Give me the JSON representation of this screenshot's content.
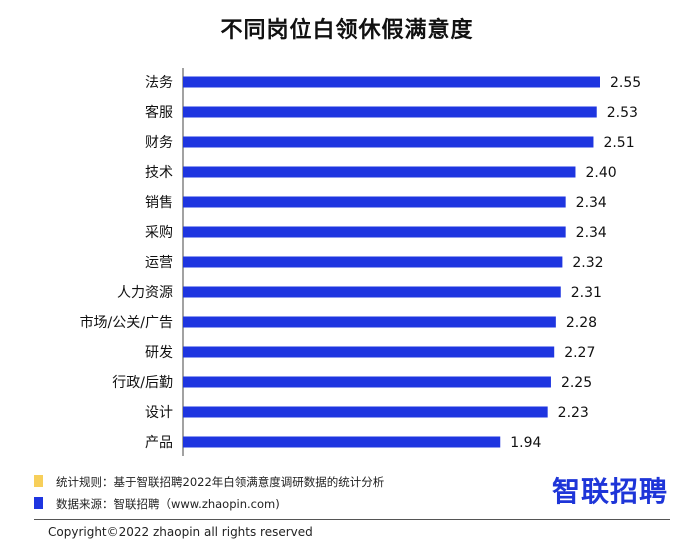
{
  "chart_data": {
    "type": "bar",
    "orientation": "horizontal",
    "title": "不同岗位白领休假满意度",
    "categories": [
      "法务",
      "客服",
      "财务",
      "技术",
      "销售",
      "采购",
      "运营",
      "人力资源",
      "市场/公关/广告",
      "研发",
      "行政/后勤",
      "设计",
      "产品"
    ],
    "values": [
      2.55,
      2.53,
      2.51,
      2.4,
      2.34,
      2.34,
      2.32,
      2.31,
      2.28,
      2.27,
      2.25,
      2.23,
      1.94
    ],
    "value_labels": [
      "2.55",
      "2.53",
      "2.51",
      "2.40",
      "2.34",
      "2.34",
      "2.32",
      "2.31",
      "2.28",
      "2.27",
      "2.25",
      "2.23",
      "1.94"
    ],
    "xlim": [
      0,
      2.55
    ],
    "bar_color": "#1e35e0",
    "xlabel": "",
    "ylabel": "",
    "grid": false
  },
  "legend": {
    "rule_label": "统计规则：基于智联招聘2022年白领满意度调研数据的统计分析",
    "rule_color": "#f7cf5a",
    "source_label": "数据来源：智联招聘（www.zhaopin.com)",
    "source_color": "#1e35e0"
  },
  "logo_text": "智联招聘",
  "copyright": "Copyright©2022 zhaopin all rights reserved"
}
